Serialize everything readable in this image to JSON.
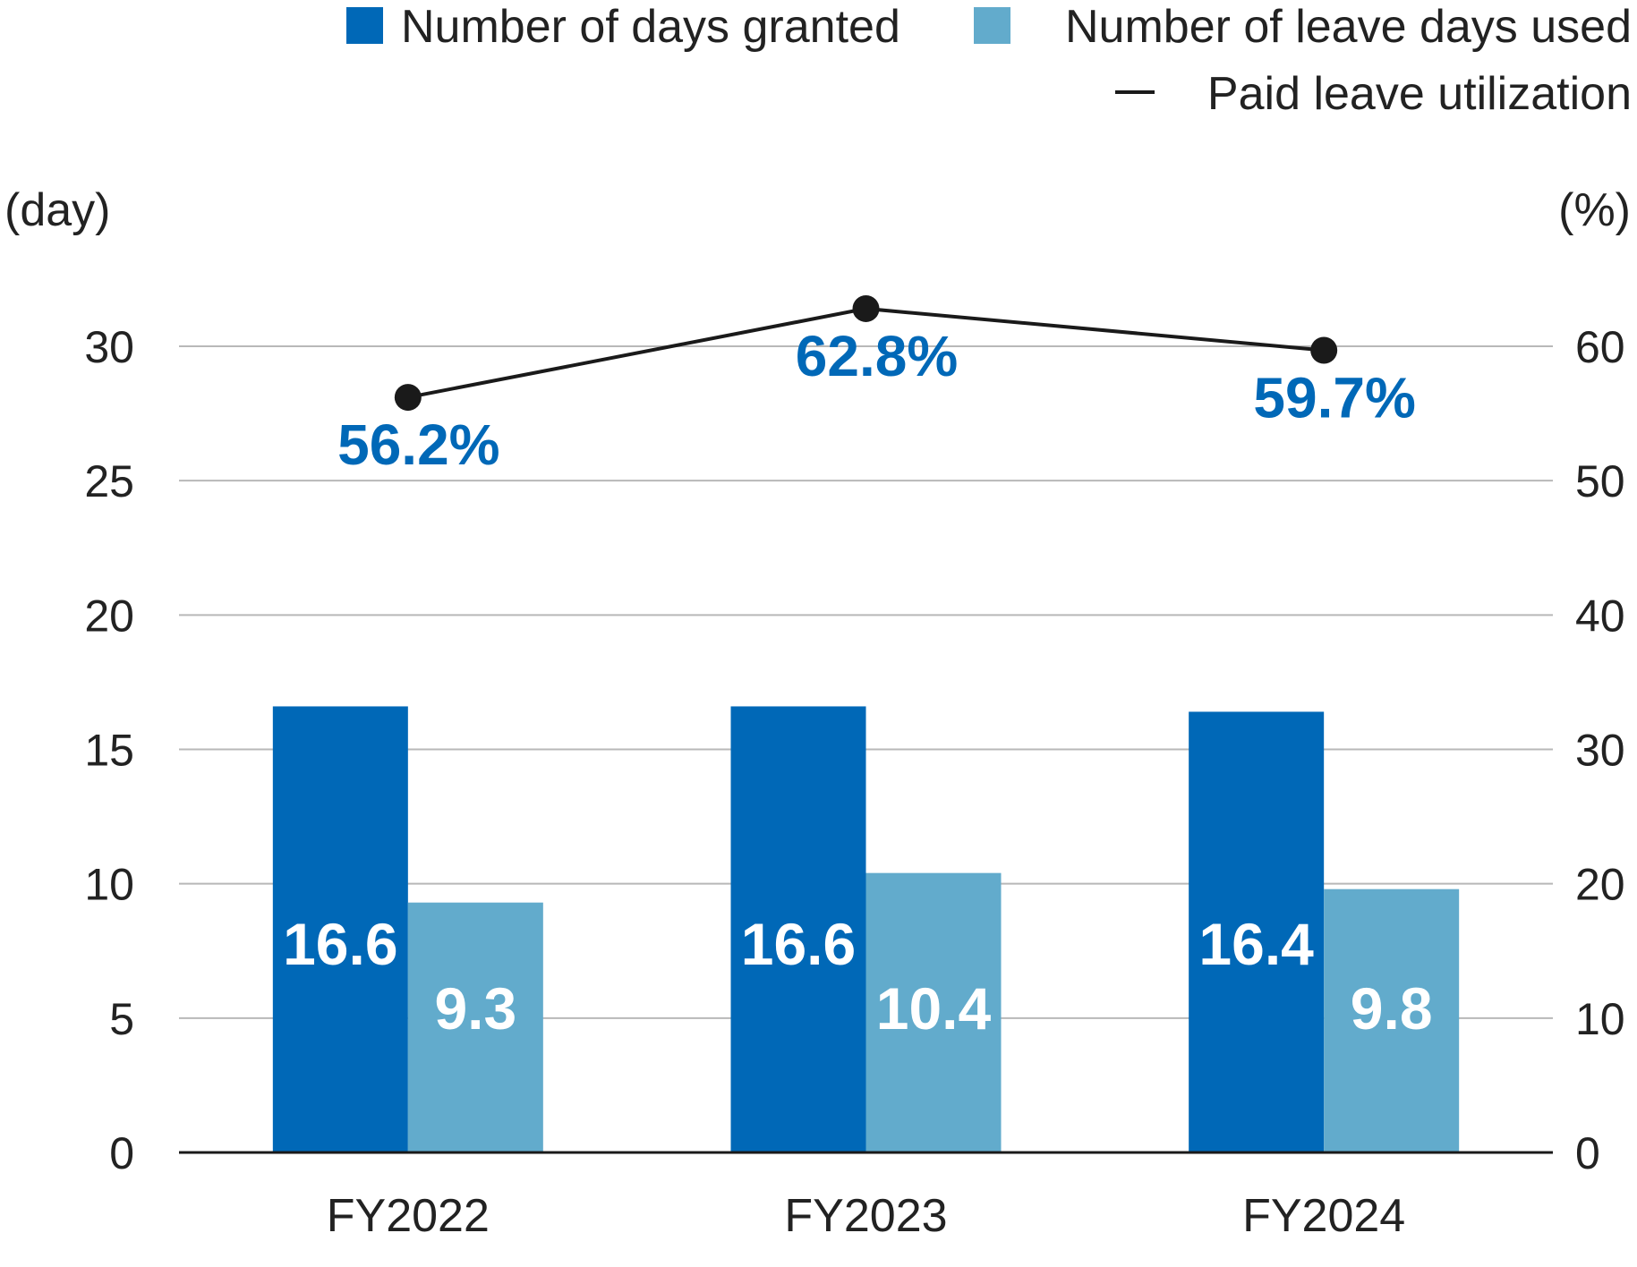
{
  "chart_data": {
    "type": "bar",
    "categories": [
      "FY2022",
      "FY2023",
      "FY2024"
    ],
    "series": [
      {
        "name": "Number of days granted",
        "values": [
          16.6,
          16.6,
          16.4
        ],
        "color": "#0068b7",
        "axis": "left"
      },
      {
        "name": "Number of leave days used",
        "values": [
          9.3,
          10.4,
          9.8
        ],
        "color": "#62abcc",
        "axis": "left"
      },
      {
        "name": "Paid leave utilization",
        "type": "line",
        "values": [
          56.2,
          62.8,
          59.7
        ],
        "color": "#1a1a1a",
        "axis": "right"
      }
    ],
    "bar_labels": [
      [
        "16.6",
        "16.6",
        "16.4"
      ],
      [
        "9.3",
        "10.4",
        "9.8"
      ]
    ],
    "line_labels": [
      "56.2%",
      "62.8%",
      "59.7%"
    ],
    "line_label_color": "#0068b7",
    "legend": {
      "placement": "top-right",
      "items": [
        {
          "label": "Number of days granted",
          "symbol": "square",
          "color": "#0068b7"
        },
        {
          "label": "Number of leave days used",
          "symbol": "square",
          "color": "#62abcc"
        },
        {
          "label": "Paid leave utilization",
          "symbol": "line",
          "glyph": "—",
          "color": "#1a1a1a"
        }
      ]
    },
    "y_left": {
      "label": "(day)",
      "ylim": [
        0,
        30
      ],
      "ticks": [
        0,
        5,
        10,
        15,
        20,
        25,
        30
      ]
    },
    "y_right": {
      "label": "(%)",
      "ylim": [
        0,
        60
      ],
      "ticks": [
        0,
        10,
        20,
        30,
        40,
        50,
        60
      ]
    },
    "grid": true
  }
}
